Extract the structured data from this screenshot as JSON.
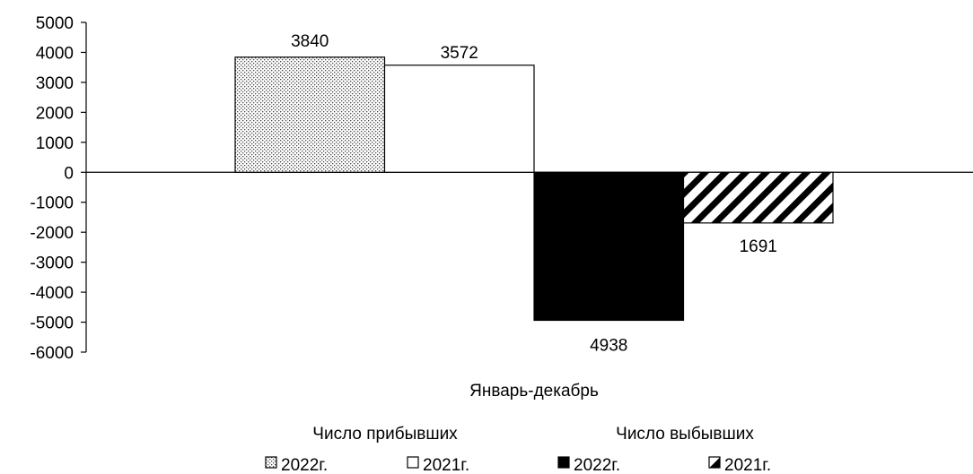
{
  "chart_data": {
    "type": "bar",
    "categories": [
      "Январь-декабрь"
    ],
    "series": [
      {
        "name": "2022г.",
        "group": "Число прибывших",
        "values": [
          3840
        ],
        "label": "3840",
        "pattern": "dots"
      },
      {
        "name": "2021г.",
        "group": "Число прибывших",
        "values": [
          3572
        ],
        "label": "3572",
        "pattern": "none"
      },
      {
        "name": "2022г.",
        "group": "Число выбывших",
        "values": [
          -4938
        ],
        "label": "4938",
        "pattern": "solid"
      },
      {
        "name": "2021г.",
        "group": "Число выбывших",
        "values": [
          -1691
        ],
        "label": "1691",
        "pattern": "hatch"
      }
    ],
    "ylim": [
      -6000,
      5000
    ],
    "yticks": [
      "5000",
      "4000",
      "3000",
      "2000",
      "1000",
      "0",
      "-1000",
      "-2000",
      "-3000",
      "-4000",
      "-5000",
      "-6000"
    ],
    "legend": {
      "position": "bottom",
      "groups": [
        "Число прибывших",
        "Число выбывших"
      ]
    },
    "grid": false
  }
}
